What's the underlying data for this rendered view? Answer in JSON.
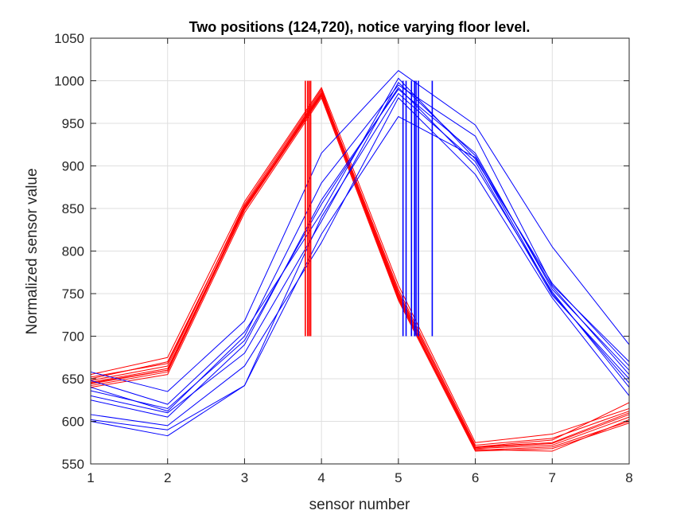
{
  "chart_data": {
    "type": "line",
    "title": "Two positions (124,720), notice varying floor level.",
    "xlabel": "sensor number",
    "ylabel": "Normalized sensor value",
    "xlim": [
      1,
      8
    ],
    "ylim": [
      550,
      1050
    ],
    "xticks": [
      "1",
      "2",
      "3",
      "4",
      "5",
      "6",
      "7",
      "8"
    ],
    "yticks": [
      "550",
      "600",
      "650",
      "700",
      "750",
      "800",
      "850",
      "900",
      "950",
      "1000",
      "1050"
    ],
    "grid": true,
    "colors": {
      "position_a": "#ff0000",
      "position_b": "#0000ff"
    },
    "x": [
      1,
      2,
      3,
      4,
      5,
      6,
      7,
      8
    ],
    "series_a": [
      [
        645,
        660,
        850,
        985,
        750,
        570,
        575,
        610
      ],
      [
        648,
        665,
        855,
        990,
        745,
        568,
        572,
        605
      ],
      [
        650,
        670,
        852,
        988,
        755,
        572,
        580,
        612
      ],
      [
        642,
        658,
        848,
        982,
        748,
        566,
        570,
        600
      ],
      [
        655,
        675,
        858,
        992,
        760,
        575,
        585,
        615
      ],
      [
        640,
        655,
        845,
        980,
        742,
        565,
        568,
        598
      ],
      [
        652,
        668,
        853,
        986,
        752,
        570,
        578,
        622
      ],
      [
        646,
        662,
        851,
        984,
        746,
        569,
        574,
        608
      ],
      [
        644,
        660,
        849,
        983,
        744,
        567,
        565,
        602
      ]
    ],
    "series_b": [
      [
        658,
        635,
        718,
        915,
        1012,
        948,
        805,
        690
      ],
      [
        640,
        612,
        700,
        880,
        995,
        935,
        760,
        670
      ],
      [
        625,
        605,
        690,
        860,
        990,
        915,
        755,
        660
      ],
      [
        602,
        590,
        642,
        840,
        985,
        905,
        748,
        650
      ],
      [
        600,
        583,
        642,
        820,
        958,
        910,
        750,
        645
      ],
      [
        608,
        595,
        665,
        810,
        980,
        890,
        745,
        630
      ],
      [
        630,
        610,
        680,
        835,
        998,
        912,
        758,
        655
      ],
      [
        648,
        620,
        705,
        845,
        1003,
        908,
        762,
        665
      ],
      [
        636,
        615,
        695,
        855,
        992,
        900,
        752,
        640
      ]
    ],
    "markers_a": {
      "x": [
        3.79,
        3.82,
        3.84,
        3.86
      ],
      "y0": 700,
      "y1": 1000
    },
    "markers_b": {
      "x": [
        5.06,
        5.1,
        5.17,
        5.21,
        5.23,
        5.26,
        5.44
      ],
      "y0": 700,
      "y1": 1000
    }
  }
}
